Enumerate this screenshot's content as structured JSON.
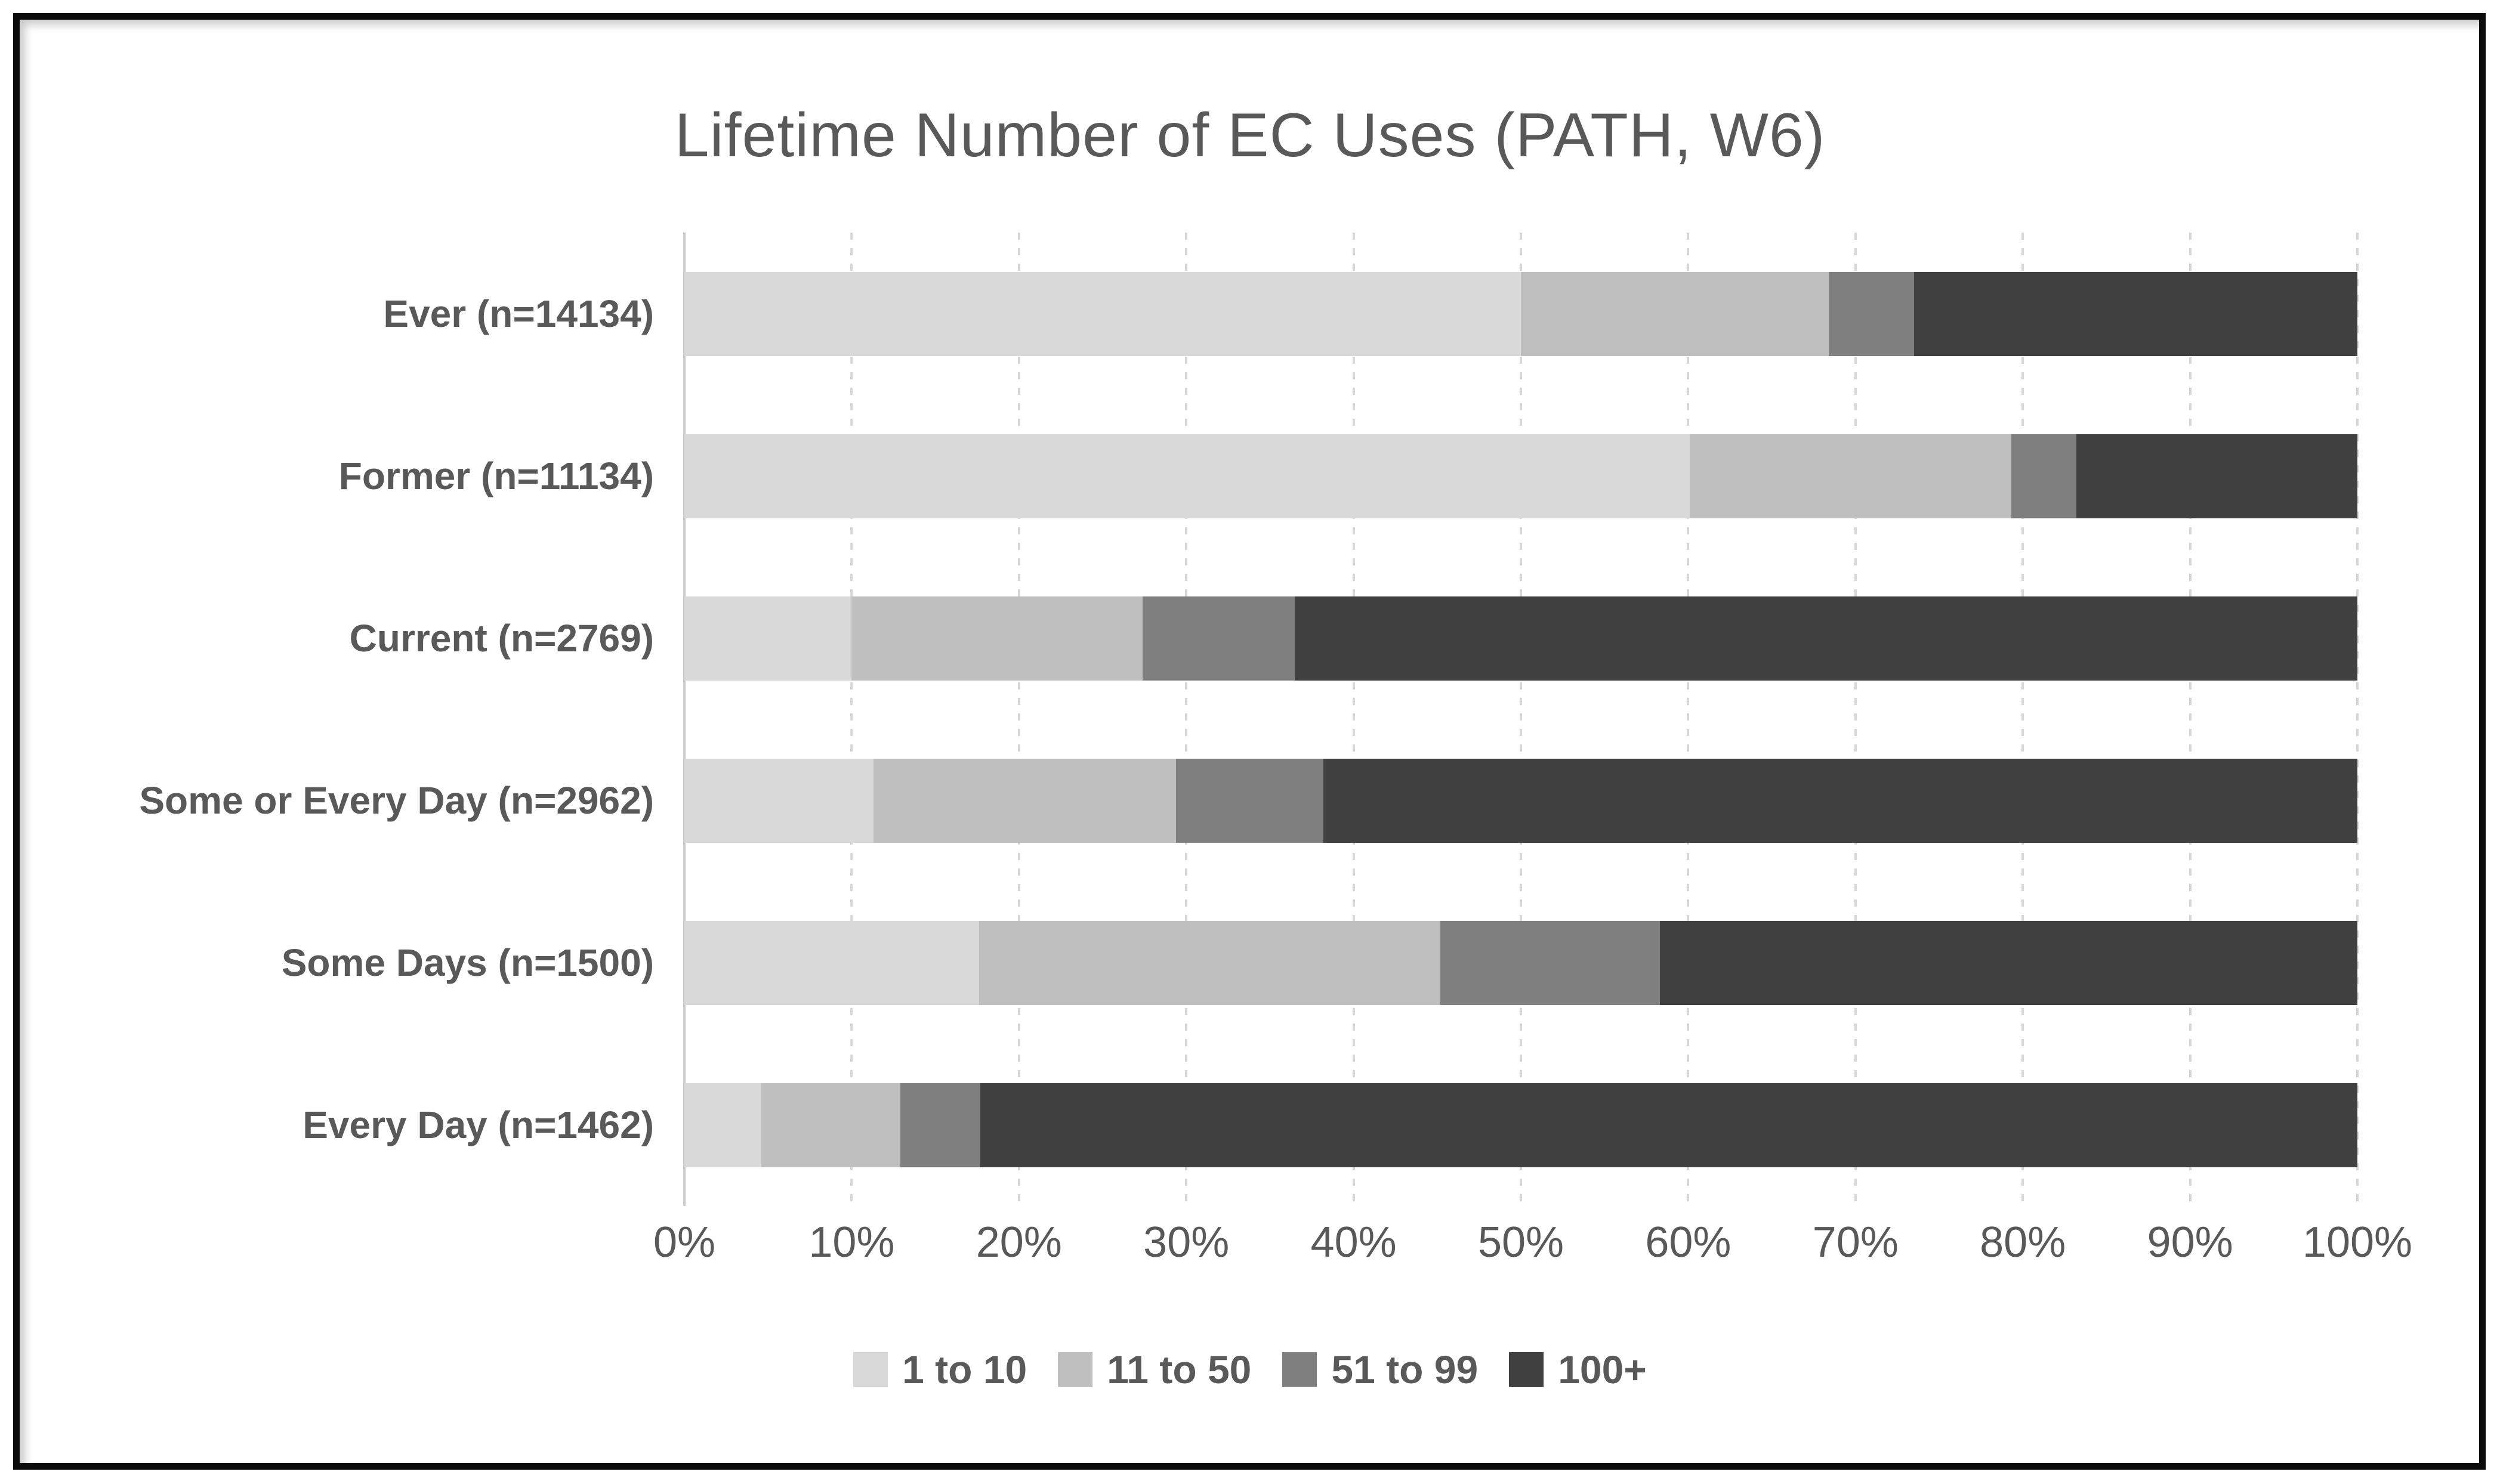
{
  "title": "Lifetime Number of EC Uses (PATH, W6)",
  "colors": {
    "text": "#595959",
    "gridline": "#d6d6d6",
    "axis_line": "#c9c9c9",
    "frame_border": "#0b0b0b",
    "background": "#ffffff",
    "series": [
      "#d9d9d9",
      "#bfbfbf",
      "#7f7f7f",
      "#404040"
    ]
  },
  "chart_data": {
    "type": "bar",
    "orientation": "horizontal",
    "stacked": true,
    "title": "Lifetime Number of EC Uses (PATH, W6)",
    "categories": [
      "Ever (n=14134)",
      "Former (n=11134)",
      "Current (n=2769)",
      "Some or Every Day (n=2962)",
      "Some Days (n=1500)",
      "Every Day (n=1462)"
    ],
    "series": [
      {
        "name": "1 to 10",
        "color": "#d9d9d9",
        "values": [
          50.0,
          60.1,
          10.0,
          11.3,
          17.6,
          4.6
        ]
      },
      {
        "name": "11 to 50",
        "color": "#bfbfbf",
        "values": [
          18.4,
          19.2,
          17.4,
          18.1,
          27.6,
          8.3
        ]
      },
      {
        "name": "51 to 99",
        "color": "#7f7f7f",
        "values": [
          5.1,
          3.9,
          9.1,
          8.8,
          13.1,
          4.8
        ]
      },
      {
        "name": "100+",
        "color": "#404040",
        "values": [
          26.5,
          16.8,
          63.5,
          61.8,
          41.7,
          82.3
        ]
      }
    ],
    "x_axis": {
      "min": 0,
      "max": 100,
      "unit": "%",
      "tick_step": 10,
      "ticks": [
        "0%",
        "10%",
        "20%",
        "30%",
        "40%",
        "50%",
        "60%",
        "70%",
        "80%",
        "90%",
        "100%"
      ]
    },
    "grid": "vertical-dashed",
    "legend_position": "bottom",
    "legend_items": [
      "1 to 10",
      "11 to 50",
      "51 to 99",
      "100+"
    ]
  }
}
